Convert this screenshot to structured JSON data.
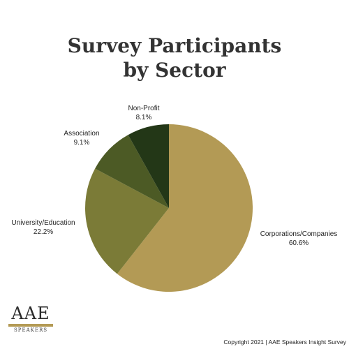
{
  "title_line1": "Survey Participants",
  "title_line2": "by Sector",
  "chart_data": {
    "type": "pie",
    "title": "Survey Participants by Sector",
    "start": "12 o'clock",
    "direction": "clockwise",
    "slices": [
      {
        "label": "Corporations/Companies",
        "value": 60.6,
        "value_label": "60.6%",
        "color": "#b39a55"
      },
      {
        "label": "University/Education",
        "value": 22.2,
        "value_label": "22.2%",
        "color": "#7b7b37"
      },
      {
        "label": "Association",
        "value": 9.1,
        "value_label": "9.1%",
        "color": "#4c5a25"
      },
      {
        "label": "Non-Profit",
        "value": 8.1,
        "value_label": "8.1%",
        "color": "#233717"
      }
    ]
  },
  "logo": {
    "main": "AAE",
    "sub": "SPEAKERS"
  },
  "footer": "Copyright 2021 | AAE Speakers Insight Survey"
}
